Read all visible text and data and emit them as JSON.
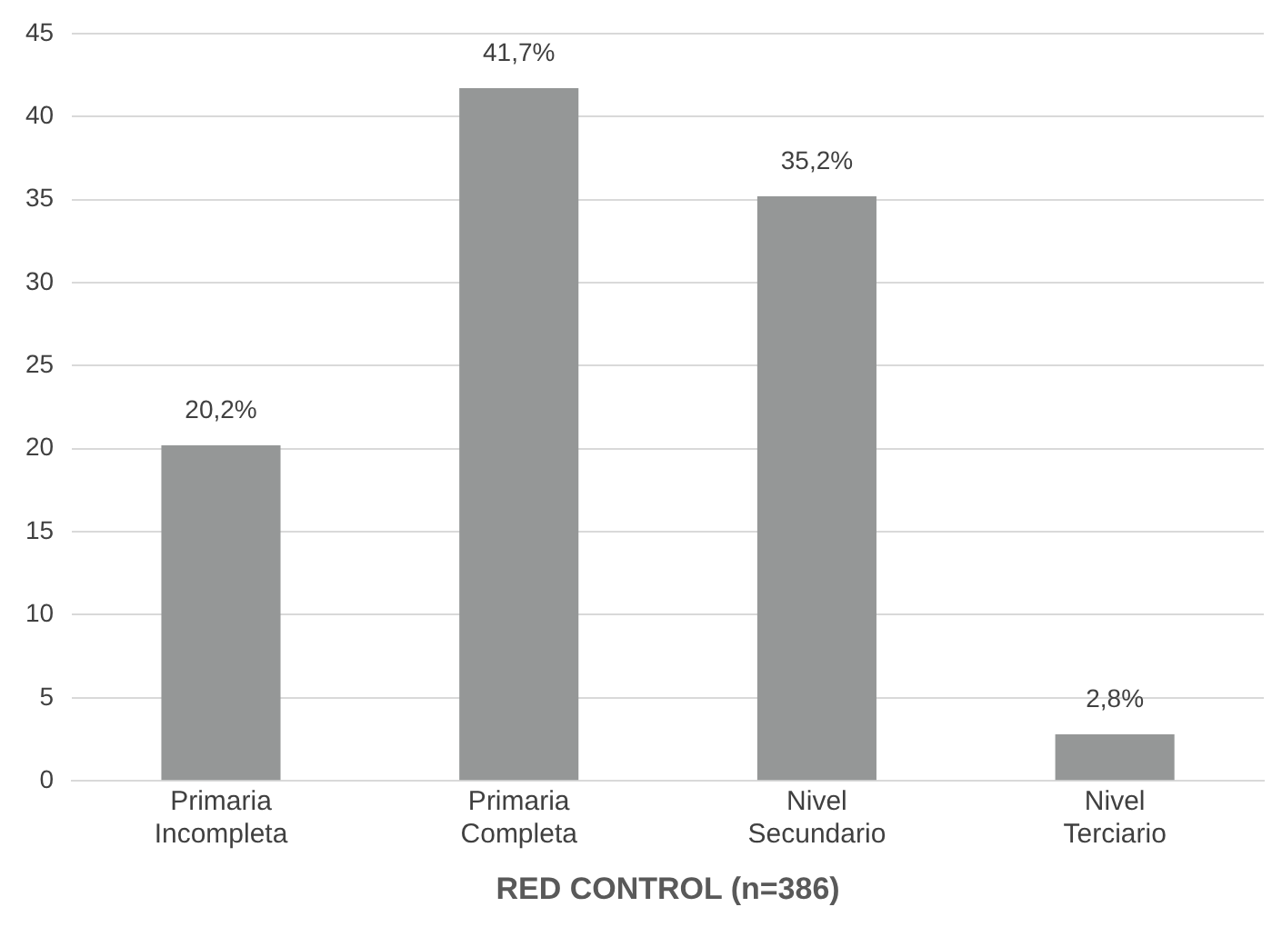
{
  "chart_data": {
    "type": "bar",
    "xlabel": "RED CONTROL (n=386)",
    "categories": [
      "Primaria Incompleta",
      "Primaria Completa",
      "Nivel Secundario",
      "Nivel Terciario"
    ],
    "values": [
      20.2,
      41.7,
      35.2,
      2.8
    ],
    "value_labels": [
      "20,2%",
      "41,7%",
      "35,2%",
      "2,8%"
    ],
    "color": "#959797",
    "ylim": [
      0,
      45
    ],
    "yticks": [
      0,
      5,
      10,
      15,
      20,
      25,
      30,
      35,
      40,
      45
    ],
    "grid": "y",
    "legend": false
  }
}
